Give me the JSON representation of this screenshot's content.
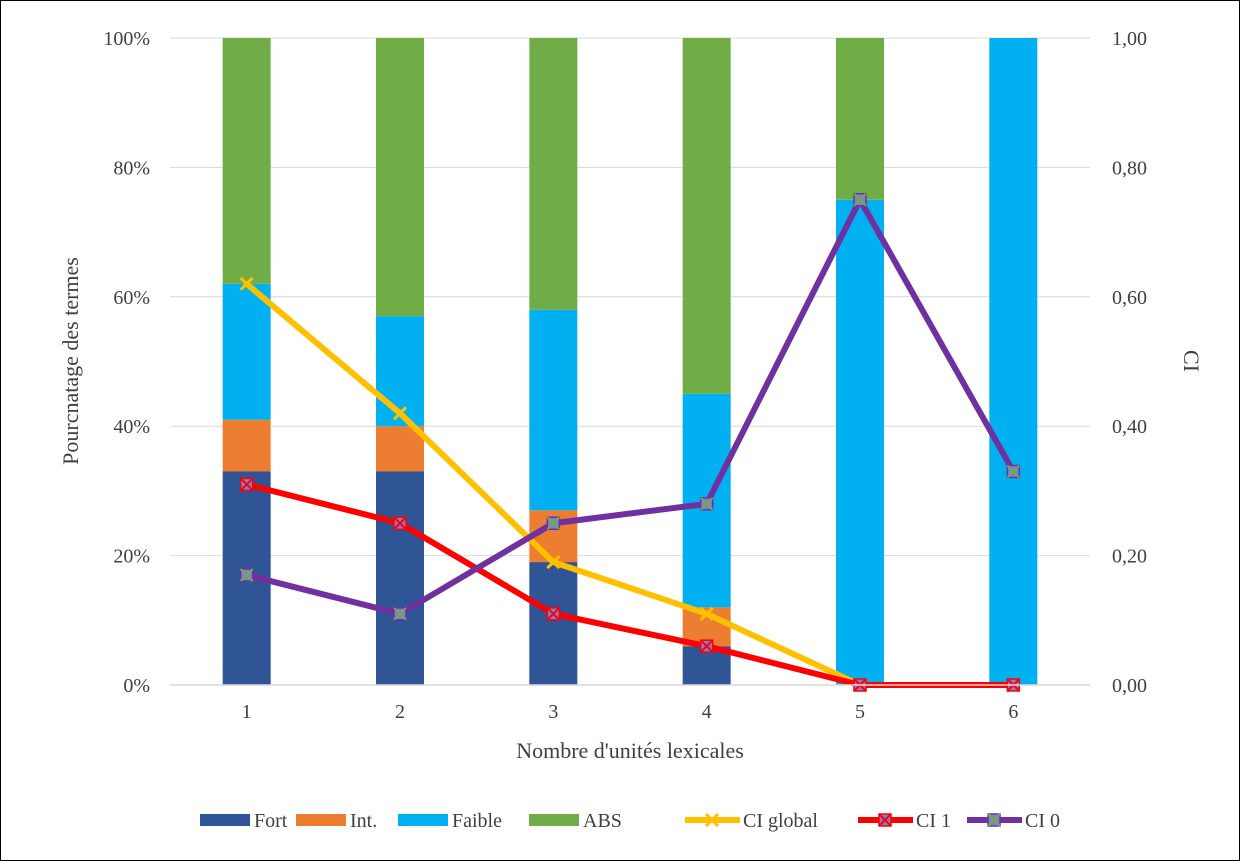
{
  "chart_data": {
    "type": "bar",
    "stacked": true,
    "categories": [
      "1",
      "2",
      "3",
      "4",
      "5",
      "6"
    ],
    "xlabel": "Nombre d'unités lexicales",
    "ylabel": "Pourcnatage des termes",
    "y2label": "CI",
    "ylim": [
      0,
      100
    ],
    "y2lim": [
      0,
      1
    ],
    "y_ticks": [
      "0%",
      "20%",
      "40%",
      "60%",
      "80%",
      "100%"
    ],
    "y2_ticks": [
      "0,00",
      "0,20",
      "0,40",
      "0,60",
      "0,80",
      "1,00"
    ],
    "grid": true,
    "legend_position": "bottom",
    "series": [
      {
        "name": "Fort",
        "type": "bar",
        "color": "#2F5597",
        "values": [
          33,
          33,
          19,
          6,
          0,
          0
        ]
      },
      {
        "name": "Int.",
        "type": "bar",
        "color": "#ED7D31",
        "values": [
          8,
          7,
          8,
          6,
          0,
          0
        ]
      },
      {
        "name": "Faible",
        "type": "bar",
        "color": "#00B0F0",
        "values": [
          21,
          17,
          31,
          33,
          75,
          100
        ]
      },
      {
        "name": "ABS",
        "type": "bar",
        "color": "#70AD47",
        "values": [
          38,
          43,
          42,
          55,
          25,
          0
        ]
      },
      {
        "name": "CI global",
        "type": "line",
        "axis": "y2",
        "color": "#FFC000",
        "values": [
          0.62,
          0.42,
          0.19,
          0.11,
          0.0,
          null
        ]
      },
      {
        "name": "CI 1",
        "type": "line",
        "axis": "y2",
        "color": "#FF0000",
        "values": [
          0.31,
          0.25,
          0.11,
          0.06,
          0.0,
          0.0
        ]
      },
      {
        "name": "CI 0",
        "type": "line",
        "axis": "y2",
        "color": "#7030A0",
        "values": [
          0.17,
          0.11,
          0.25,
          0.28,
          0.75,
          0.33
        ]
      }
    ]
  }
}
